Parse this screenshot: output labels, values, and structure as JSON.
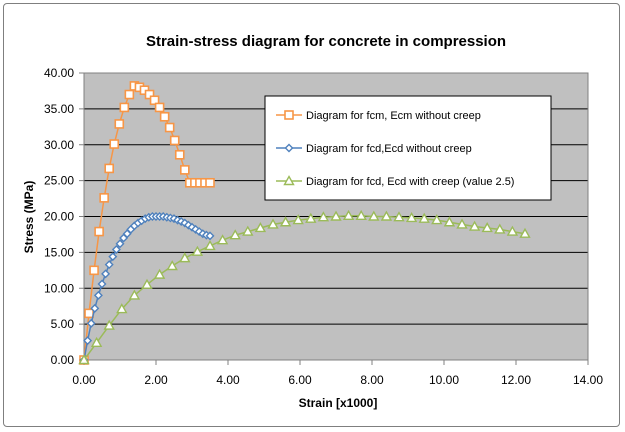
{
  "chart_data": {
    "type": "scatter",
    "title": "Strain-stress diagram for concrete in compression",
    "xlabel": "Strain  [x1000]",
    "ylabel": "Stress (MPa)",
    "xlim": [
      0,
      14
    ],
    "ylim": [
      0,
      40
    ],
    "x_ticks": [
      "0.00",
      "2.00",
      "4.00",
      "6.00",
      "8.00",
      "10.00",
      "12.00",
      "14.00"
    ],
    "y_ticks": [
      "0.00",
      "5.00",
      "10.00",
      "15.00",
      "20.00",
      "25.00",
      "30.00",
      "35.00",
      "40.00"
    ],
    "grid": true,
    "plot_background": "#c0c0c0",
    "legend_position": "inside-upper-right",
    "series": [
      {
        "name": "Diagram for fcm, Ecm without creep",
        "color": "#f79646",
        "marker": "square",
        "x": [
          0.0,
          0.14,
          0.28,
          0.42,
          0.56,
          0.7,
          0.84,
          0.98,
          1.12,
          1.26,
          1.4,
          1.54,
          1.68,
          1.82,
          1.96,
          2.1,
          2.24,
          2.38,
          2.52,
          2.66,
          2.8,
          2.94,
          3.08,
          3.22,
          3.36,
          3.5
        ],
        "y": [
          0.0,
          6.5,
          12.5,
          17.9,
          22.6,
          26.7,
          30.1,
          32.9,
          35.2,
          37.0,
          38.2,
          38.0,
          37.6,
          37.0,
          36.2,
          35.2,
          33.9,
          32.4,
          30.6,
          28.6,
          26.5,
          24.7,
          24.7,
          24.7,
          24.7,
          24.7
        ]
      },
      {
        "name": "Diagram for fcd,Ecd without creep",
        "color": "#4f81bd",
        "marker": "diamond",
        "x": [
          0.0,
          0.1,
          0.2,
          0.3,
          0.4,
          0.5,
          0.6,
          0.7,
          0.8,
          0.9,
          1.0,
          1.1,
          1.2,
          1.3,
          1.4,
          1.5,
          1.6,
          1.7,
          1.8,
          1.9,
          2.0,
          2.1,
          2.2,
          2.3,
          2.4,
          2.5,
          2.6,
          2.7,
          2.8,
          2.9,
          3.0,
          3.1,
          3.2,
          3.3,
          3.4,
          3.5
        ],
        "y": [
          0.0,
          2.7,
          5.1,
          7.2,
          9.0,
          10.6,
          12.0,
          13.3,
          14.4,
          15.4,
          16.2,
          17.0,
          17.6,
          18.2,
          18.7,
          19.1,
          19.4,
          19.7,
          19.9,
          20.0,
          20.0,
          20.0,
          20.0,
          19.9,
          19.8,
          19.7,
          19.5,
          19.3,
          19.1,
          18.8,
          18.5,
          18.2,
          17.9,
          17.6,
          17.4,
          17.3
        ]
      },
      {
        "name": "Diagram for fcd, Ecd with creep (value 2.5)",
        "color": "#9bbb59",
        "marker": "triangle",
        "x": [
          0.0,
          0.35,
          0.7,
          1.05,
          1.4,
          1.75,
          2.1,
          2.45,
          2.8,
          3.15,
          3.5,
          3.85,
          4.2,
          4.55,
          4.9,
          5.25,
          5.6,
          5.95,
          6.3,
          6.65,
          7.0,
          7.35,
          7.7,
          8.05,
          8.4,
          8.75,
          9.1,
          9.45,
          9.8,
          10.15,
          10.5,
          10.85,
          11.2,
          11.55,
          11.9,
          12.25
        ],
        "y": [
          0.0,
          2.4,
          4.8,
          7.1,
          9.0,
          10.5,
          11.9,
          13.1,
          14.2,
          15.1,
          15.9,
          16.7,
          17.4,
          17.9,
          18.4,
          18.9,
          19.2,
          19.5,
          19.7,
          19.9,
          20.0,
          20.1,
          20.1,
          20.0,
          20.0,
          19.9,
          19.8,
          19.7,
          19.5,
          19.2,
          18.9,
          18.6,
          18.4,
          18.2,
          17.9,
          17.6
        ]
      }
    ]
  }
}
